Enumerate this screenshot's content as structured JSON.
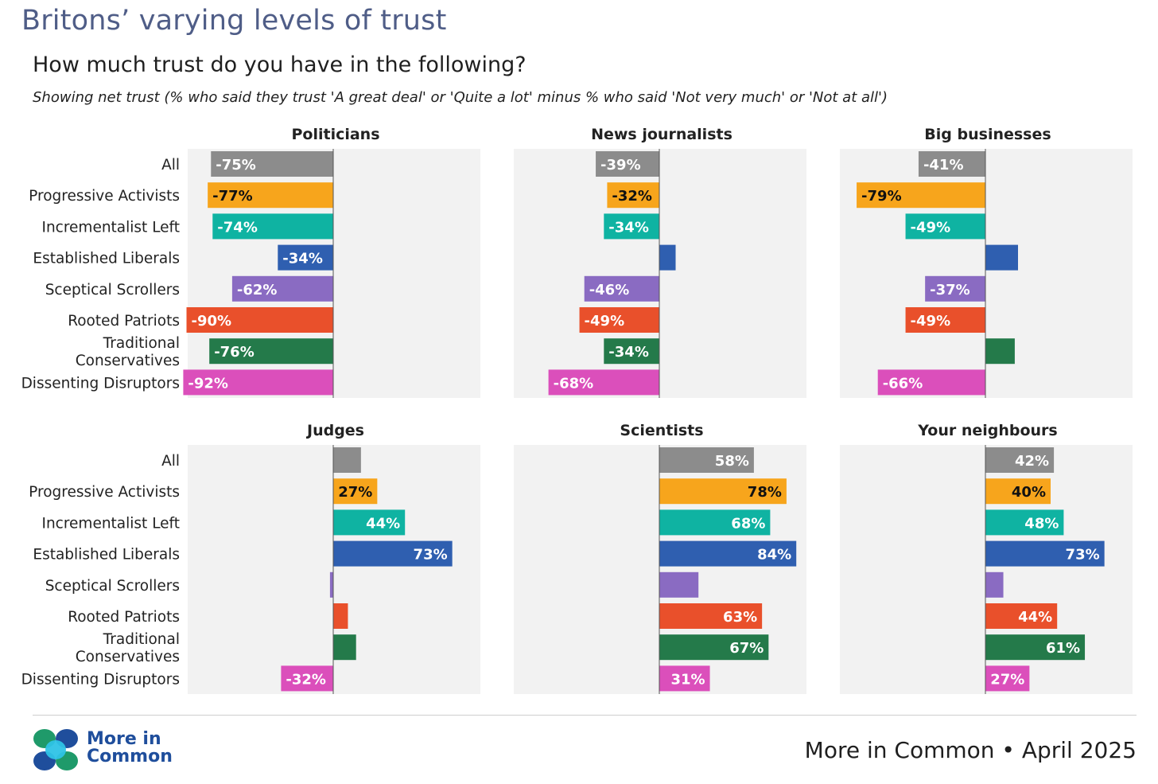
{
  "title": "Britons’ varying levels of trust",
  "subtitle": "How much trust do you have in the following?",
  "note": "Showing net trust (% who said they trust 'A great deal' or 'Quite a lot' minus % who said 'Not very much' or 'Not at all')",
  "footer": {
    "logo_line1": "More in",
    "logo_line2": "Common",
    "credit": "More in Common • April 2025"
  },
  "colors": {
    "All": "#8c8c8c",
    "Progressive Activists": "#f7a51c",
    "Incrementalist Left": "#0fb3a2",
    "Established Liberals": "#2f5fb0",
    "Sceptical Scrollers": "#8a6bc2",
    "Rooted Patriots": "#e9502b",
    "Traditional Conservatives": "#247a4a",
    "Dissenting Disruptors": "#db4fbb",
    "panel_bg": "#f2f2f2"
  },
  "chart_data": [
    {
      "type": "bar",
      "orientation": "horizontal",
      "title": "Politicians",
      "categories": [
        "All",
        "Progressive Activists",
        "Incrementalist Left",
        "Established Liberals",
        "Sceptical Scrollers",
        "Rooted Patriots",
        "Traditional Conservatives",
        "Dissenting Disruptors"
      ],
      "values": [
        -75,
        -77,
        -74,
        -34,
        -62,
        -90,
        -76,
        -92
      ],
      "labels": [
        "-75%",
        "-77%",
        "-74%",
        "-34%",
        "-62%",
        "-90%",
        "-76%",
        "-92%"
      ],
      "xlim": [
        -100,
        100
      ]
    },
    {
      "type": "bar",
      "orientation": "horizontal",
      "title": "News journalists",
      "categories": [
        "All",
        "Progressive Activists",
        "Incrementalist Left",
        "Established Liberals",
        "Sceptical Scrollers",
        "Rooted Patriots",
        "Traditional Conservatives",
        "Dissenting Disruptors"
      ],
      "values": [
        -39,
        -32,
        -34,
        10,
        -46,
        -49,
        -34,
        -68
      ],
      "labels": [
        "-39%",
        "-32%",
        "-34%",
        "",
        "-46%",
        "-49%",
        "-34%",
        "-68%"
      ],
      "xlim": [
        -100,
        100
      ]
    },
    {
      "type": "bar",
      "orientation": "horizontal",
      "title": "Big businesses",
      "categories": [
        "All",
        "Progressive Activists",
        "Incrementalist Left",
        "Established Liberals",
        "Sceptical Scrollers",
        "Rooted Patriots",
        "Traditional Conservatives",
        "Dissenting Disruptors"
      ],
      "values": [
        -41,
        -79,
        -49,
        20,
        -37,
        -49,
        18,
        -66
      ],
      "labels": [
        "-41%",
        "-79%",
        "-49%",
        "",
        "-37%",
        "-49%",
        "",
        "-66%"
      ],
      "xlim": [
        -100,
        100
      ]
    },
    {
      "type": "bar",
      "orientation": "horizontal",
      "title": "Judges",
      "categories": [
        "All",
        "Progressive Activists",
        "Incrementalist Left",
        "Established Liberals",
        "Sceptical Scrollers",
        "Rooted Patriots",
        "Traditional Conservatives",
        "Dissenting Disruptors"
      ],
      "values": [
        17,
        27,
        44,
        73,
        -2,
        9,
        14,
        -32
      ],
      "labels": [
        "",
        "27%",
        "44%",
        "73%",
        "",
        "",
        "",
        "-32%"
      ],
      "xlim": [
        -100,
        100
      ]
    },
    {
      "type": "bar",
      "orientation": "horizontal",
      "title": "Scientists",
      "categories": [
        "All",
        "Progressive Activists",
        "Incrementalist Left",
        "Established Liberals",
        "Sceptical Scrollers",
        "Rooted Patriots",
        "Traditional Conservatives",
        "Dissenting Disruptors"
      ],
      "values": [
        58,
        78,
        68,
        84,
        24,
        63,
        67,
        31
      ],
      "labels": [
        "58%",
        "78%",
        "68%",
        "84%",
        "",
        "63%",
        "67%",
        "31%"
      ],
      "xlim": [
        -100,
        100
      ]
    },
    {
      "type": "bar",
      "orientation": "horizontal",
      "title": "Your neighbours",
      "categories": [
        "All",
        "Progressive Activists",
        "Incrementalist Left",
        "Established Liberals",
        "Sceptical Scrollers",
        "Rooted Patriots",
        "Traditional Conservatives",
        "Dissenting Disruptors"
      ],
      "values": [
        42,
        40,
        48,
        73,
        11,
        44,
        61,
        27
      ],
      "labels": [
        "42%",
        "40%",
        "48%",
        "73%",
        "",
        "44%",
        "61%",
        "27%"
      ],
      "xlim": [
        -100,
        100
      ]
    }
  ]
}
